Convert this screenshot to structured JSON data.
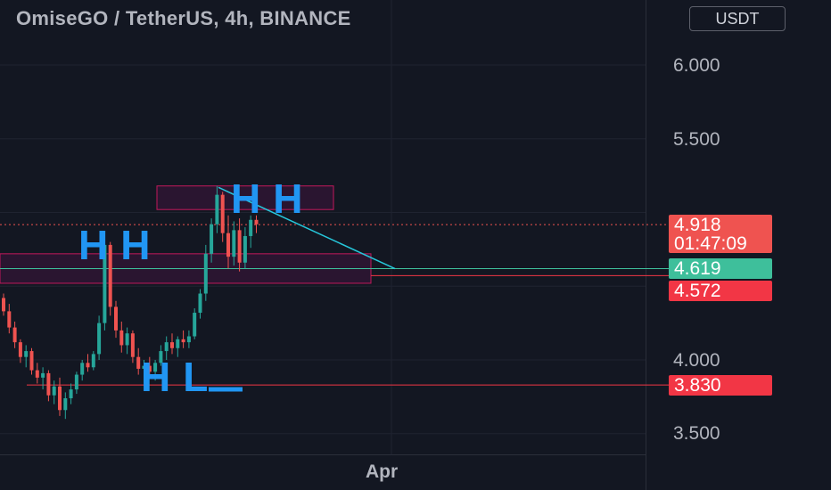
{
  "header": {
    "title": "OmiseGO / TetherUS, 4h, BINANCE",
    "currency_button": "USDT"
  },
  "chart_data": {
    "type": "candlestick",
    "symbol": "OmiseGO / TetherUS",
    "interval": "4h",
    "exchange": "BINANCE",
    "y_axis": {
      "ticks": [
        "6.000",
        "5.500",
        "4.000",
        "3.500"
      ],
      "ylim": [
        3.5,
        6.0
      ]
    },
    "x_axis": {
      "ticks": [
        "Apr"
      ]
    },
    "price_labels": [
      {
        "value": "4.918",
        "sub": "01:47:09",
        "color": "#ef5350"
      },
      {
        "value": "4.619",
        "color": "#3ebf9b"
      },
      {
        "value": "4.572",
        "color": "#f23645"
      },
      {
        "value": "3.830",
        "color": "#f23645"
      }
    ],
    "annotations": [
      "HH",
      "HH",
      "HL"
    ],
    "candles": [
      [
        4.42,
        4.45,
        4.3,
        4.33
      ],
      [
        4.33,
        4.38,
        4.18,
        4.22
      ],
      [
        4.22,
        4.26,
        4.08,
        4.12
      ],
      [
        4.12,
        4.14,
        3.98,
        4.02
      ],
      [
        4.02,
        4.1,
        3.95,
        4.06
      ],
      [
        4.06,
        4.08,
        3.9,
        3.93
      ],
      [
        3.93,
        3.98,
        3.84,
        3.88
      ],
      [
        3.88,
        3.95,
        3.8,
        3.91
      ],
      [
        3.91,
        3.93,
        3.72,
        3.76
      ],
      [
        3.76,
        3.86,
        3.7,
        3.82
      ],
      [
        3.82,
        3.88,
        3.62,
        3.66
      ],
      [
        3.66,
        3.78,
        3.6,
        3.74
      ],
      [
        3.74,
        3.84,
        3.7,
        3.8
      ],
      [
        3.8,
        3.92,
        3.77,
        3.9
      ],
      [
        3.9,
        4.0,
        3.86,
        3.98
      ],
      [
        3.98,
        4.04,
        3.92,
        3.95
      ],
      [
        3.95,
        4.06,
        3.93,
        4.04
      ],
      [
        4.04,
        4.3,
        4.0,
        4.25
      ],
      [
        4.25,
        4.82,
        4.2,
        4.78
      ],
      [
        4.78,
        4.8,
        4.3,
        4.36
      ],
      [
        4.36,
        4.4,
        4.15,
        4.2
      ],
      [
        4.2,
        4.26,
        4.05,
        4.1
      ],
      [
        4.1,
        4.22,
        4.04,
        4.18
      ],
      [
        4.18,
        4.2,
        3.98,
        4.02
      ],
      [
        4.02,
        4.08,
        3.9,
        3.94
      ],
      [
        3.94,
        4.0,
        3.84,
        3.96
      ],
      [
        3.96,
        4.02,
        3.88,
        3.92
      ],
      [
        3.92,
        4.0,
        3.86,
        3.98
      ],
      [
        3.98,
        4.1,
        3.96,
        4.06
      ],
      [
        4.06,
        4.16,
        4.0,
        4.12
      ],
      [
        4.12,
        4.18,
        4.04,
        4.08
      ],
      [
        4.08,
        4.16,
        4.02,
        4.14
      ],
      [
        4.14,
        4.2,
        4.08,
        4.12
      ],
      [
        4.12,
        4.2,
        4.08,
        4.16
      ],
      [
        4.16,
        4.35,
        4.14,
        4.32
      ],
      [
        4.32,
        4.48,
        4.28,
        4.45
      ],
      [
        4.45,
        4.78,
        4.4,
        4.72
      ],
      [
        4.72,
        4.96,
        4.66,
        4.92
      ],
      [
        4.92,
        5.18,
        4.86,
        5.12
      ],
      [
        5.12,
        5.14,
        4.8,
        4.86
      ],
      [
        4.86,
        4.98,
        4.62,
        4.7
      ],
      [
        4.7,
        4.94,
        4.64,
        4.88
      ],
      [
        4.88,
        4.96,
        4.6,
        4.66
      ],
      [
        4.66,
        4.9,
        4.62,
        4.84
      ],
      [
        4.84,
        4.98,
        4.76,
        4.95
      ],
      [
        4.95,
        4.98,
        4.86,
        4.92
      ]
    ]
  }
}
